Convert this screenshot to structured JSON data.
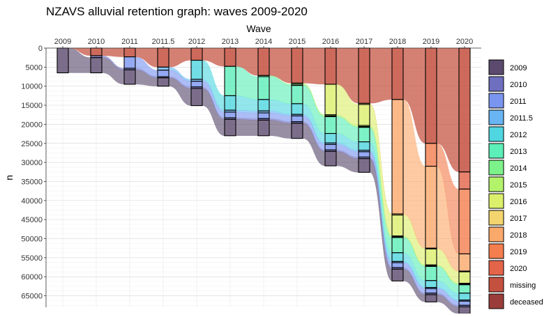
{
  "chart_data": {
    "type": "alluvial",
    "title": "NZAVS alluvial retention graph: waves 2009-2020",
    "xlabel": "Wave",
    "ylabel": "n",
    "x_axis_position": "top",
    "y_reversed": true,
    "ylim": [
      0,
      68000
    ],
    "yticks": [
      0,
      5000,
      10000,
      15000,
      20000,
      25000,
      30000,
      35000,
      40000,
      45000,
      50000,
      55000,
      60000,
      65000
    ],
    "grid": true,
    "legend_position": "right",
    "waves": [
      "2009",
      "2010",
      "2011",
      "2011.5",
      "2012",
      "2013",
      "2014",
      "2015",
      "2016",
      "2017",
      "2018",
      "2019",
      "2020"
    ],
    "legend": [
      {
        "name": "2009",
        "color": "#5b4a6e"
      },
      {
        "name": "2010",
        "color": "#6f6fbf"
      },
      {
        "name": "2011",
        "color": "#7a95f0"
      },
      {
        "name": "2011.5",
        "color": "#69b4f2"
      },
      {
        "name": "2012",
        "color": "#4fd6e0"
      },
      {
        "name": "2013",
        "color": "#5cefb8"
      },
      {
        "name": "2014",
        "color": "#7df28a"
      },
      {
        "name": "2015",
        "color": "#b3f26b"
      },
      {
        "name": "2016",
        "color": "#dcef6b"
      },
      {
        "name": "2017",
        "color": "#f3d46f"
      },
      {
        "name": "2018",
        "color": "#fba96b"
      },
      {
        "name": "2019",
        "color": "#f47e4e"
      },
      {
        "name": "2020",
        "color": "#e4644a"
      },
      {
        "name": "missing",
        "color": "#c4503f"
      },
      {
        "name": "deceased",
        "color": "#9a3d3a"
      }
    ],
    "stacks": [
      {
        "wave": "2009",
        "segments": [
          {
            "group": "missing",
            "count": 0
          },
          {
            "group": "2009",
            "count": 6500
          }
        ]
      },
      {
        "wave": "2010",
        "segments": [
          {
            "group": "missing",
            "count": 2000
          },
          {
            "group": "2010",
            "count": 500
          },
          {
            "group": "2009",
            "count": 4000
          }
        ]
      },
      {
        "wave": "2011",
        "segments": [
          {
            "group": "missing",
            "count": 2300
          },
          {
            "group": "2011",
            "count": 3000
          },
          {
            "group": "2010",
            "count": 400
          },
          {
            "group": "2009",
            "count": 3800
          }
        ]
      },
      {
        "wave": "2011.5",
        "segments": [
          {
            "group": "missing",
            "count": 5000
          },
          {
            "group": "2011.5",
            "count": 800
          },
          {
            "group": "2011",
            "count": 1700
          },
          {
            "group": "2010",
            "count": 300
          },
          {
            "group": "2009",
            "count": 2200
          }
        ]
      },
      {
        "wave": "2012",
        "segments": [
          {
            "group": "missing",
            "count": 3200
          },
          {
            "group": "2012",
            "count": 5000
          },
          {
            "group": "2011.5",
            "count": 500
          },
          {
            "group": "2011",
            "count": 1500
          },
          {
            "group": "2010",
            "count": 400
          },
          {
            "group": "2009",
            "count": 4500
          }
        ]
      },
      {
        "wave": "2013",
        "segments": [
          {
            "group": "missing",
            "count": 4800
          },
          {
            "group": "2013",
            "count": 7700
          },
          {
            "group": "2012",
            "count": 3800
          },
          {
            "group": "2011.5",
            "count": 500
          },
          {
            "group": "2011",
            "count": 1500
          },
          {
            "group": "2010",
            "count": 400
          },
          {
            "group": "2009",
            "count": 4300
          }
        ]
      },
      {
        "wave": "2014",
        "segments": [
          {
            "group": "missing",
            "count": 7200
          },
          {
            "group": "2014",
            "count": 300
          },
          {
            "group": "2013",
            "count": 6000
          },
          {
            "group": "2012",
            "count": 3000
          },
          {
            "group": "2011.5",
            "count": 500
          },
          {
            "group": "2011",
            "count": 1500
          },
          {
            "group": "2010",
            "count": 400
          },
          {
            "group": "2009",
            "count": 4100
          }
        ]
      },
      {
        "wave": "2015",
        "segments": [
          {
            "group": "missing",
            "count": 9200
          },
          {
            "group": "2015",
            "count": 300
          },
          {
            "group": "2014",
            "count": 300
          },
          {
            "group": "2013",
            "count": 4800
          },
          {
            "group": "2012",
            "count": 2800
          },
          {
            "group": "2011.5",
            "count": 400
          },
          {
            "group": "2011",
            "count": 1500
          },
          {
            "group": "2010",
            "count": 400
          },
          {
            "group": "2009",
            "count": 4000
          }
        ]
      },
      {
        "wave": "2016",
        "segments": [
          {
            "group": "missing",
            "count": 9500
          },
          {
            "group": "2016",
            "count": 8000
          },
          {
            "group": "2015",
            "count": 300
          },
          {
            "group": "2014",
            "count": 200
          },
          {
            "group": "2013",
            "count": 4400
          },
          {
            "group": "2012",
            "count": 2500
          },
          {
            "group": "2011.5",
            "count": 400
          },
          {
            "group": "2011",
            "count": 1400
          },
          {
            "group": "2010",
            "count": 400
          },
          {
            "group": "2009",
            "count": 3800
          }
        ]
      },
      {
        "wave": "2017",
        "segments": [
          {
            "group": "missing",
            "count": 14500
          },
          {
            "group": "2017",
            "count": 300
          },
          {
            "group": "2016",
            "count": 5500
          },
          {
            "group": "2015",
            "count": 300
          },
          {
            "group": "2014",
            "count": 200
          },
          {
            "group": "2013",
            "count": 3800
          },
          {
            "group": "2012",
            "count": 2200
          },
          {
            "group": "2011.5",
            "count": 400
          },
          {
            "group": "2011",
            "count": 1400
          },
          {
            "group": "2010",
            "count": 400
          },
          {
            "group": "2009",
            "count": 3600
          }
        ]
      },
      {
        "wave": "2018",
        "segments": [
          {
            "group": "missing",
            "count": 13500
          },
          {
            "group": "2018",
            "count": 30000
          },
          {
            "group": "2017",
            "count": 300
          },
          {
            "group": "2016",
            "count": 5500
          },
          {
            "group": "2015",
            "count": 200
          },
          {
            "group": "2014",
            "count": 200
          },
          {
            "group": "2013",
            "count": 4000
          },
          {
            "group": "2012",
            "count": 2300
          },
          {
            "group": "2011.5",
            "count": 300
          },
          {
            "group": "2011",
            "count": 1300
          },
          {
            "group": "2010",
            "count": 400
          },
          {
            "group": "2009",
            "count": 3100
          }
        ]
      },
      {
        "wave": "2019",
        "segments": [
          {
            "group": "missing",
            "count": 25000
          },
          {
            "group": "2019",
            "count": 6000
          },
          {
            "group": "2018",
            "count": 21500
          },
          {
            "group": "2017",
            "count": 200
          },
          {
            "group": "2016",
            "count": 4200
          },
          {
            "group": "2015",
            "count": 200
          },
          {
            "group": "2014",
            "count": 200
          },
          {
            "group": "2013",
            "count": 3700
          },
          {
            "group": "2012",
            "count": 1800
          },
          {
            "group": "2011.5",
            "count": 300
          },
          {
            "group": "2011",
            "count": 1200
          },
          {
            "group": "2010",
            "count": 400
          },
          {
            "group": "2009",
            "count": 1900
          }
        ]
      },
      {
        "wave": "2020",
        "segments": [
          {
            "group": "missing",
            "count": 32500
          },
          {
            "group": "2020",
            "count": 4500
          },
          {
            "group": "2019",
            "count": 17000
          },
          {
            "group": "2018",
            "count": 4500
          },
          {
            "group": "2017",
            "count": 200
          },
          {
            "group": "2016",
            "count": 3000
          },
          {
            "group": "2015",
            "count": 200
          },
          {
            "group": "2014",
            "count": 200
          },
          {
            "group": "2013",
            "count": 2200
          },
          {
            "group": "2012",
            "count": 1800
          },
          {
            "group": "2011.5",
            "count": 300
          },
          {
            "group": "2011",
            "count": 1100
          },
          {
            "group": "2010",
            "count": 400
          },
          {
            "group": "2009",
            "count": 1800
          }
        ]
      }
    ]
  }
}
